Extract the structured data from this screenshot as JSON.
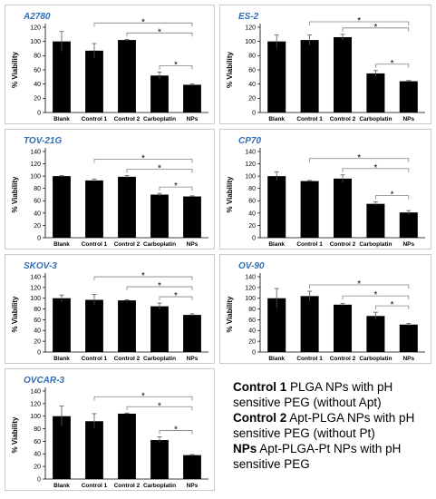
{
  "chart_data": [
    {
      "type": "bar",
      "title": "A2780",
      "ylabel": "% Viability",
      "categories": [
        "Blank",
        "Control 1",
        "Control 2",
        "Carboplatin",
        "NPs"
      ],
      "values": [
        100,
        87,
        102,
        52,
        39
      ],
      "errors": [
        14,
        10,
        1,
        5,
        1
      ],
      "ylim": [
        0,
        120
      ],
      "yticks": [
        0,
        20,
        40,
        60,
        80,
        100,
        120
      ],
      "significance": [
        {
          "from": "Control 1",
          "to": "NPs",
          "label": "*"
        },
        {
          "from": "Control 2",
          "to": "NPs",
          "label": "*"
        },
        {
          "from": "Carboplatin",
          "to": "NPs",
          "label": "*"
        }
      ]
    },
    {
      "type": "bar",
      "title": "ES-2",
      "ylabel": "% Viability",
      "categories": [
        "Blank",
        "Control 1",
        "Control 2",
        "Carboplatin",
        "NPs"
      ],
      "values": [
        100,
        102,
        106,
        55,
        44
      ],
      "errors": [
        9,
        7,
        4,
        4,
        1
      ],
      "ylim": [
        0,
        120
      ],
      "yticks": [
        0,
        20,
        40,
        60,
        80,
        100,
        120
      ],
      "significance": [
        {
          "from": "Control 1",
          "to": "NPs",
          "label": "*"
        },
        {
          "from": "Control 2",
          "to": "NPs",
          "label": "*"
        },
        {
          "from": "Carboplatin",
          "to": "NPs",
          "label": "*"
        }
      ]
    },
    {
      "type": "bar",
      "title": "TOV-21G",
      "ylabel": "% Viability",
      "categories": [
        "Blank",
        "Control 1",
        "Control 2",
        "Carboplatin",
        "NPs"
      ],
      "values": [
        100,
        93,
        99,
        70,
        67
      ],
      "errors": [
        1,
        2,
        2,
        2,
        1
      ],
      "ylim": [
        0,
        140
      ],
      "yticks": [
        0,
        20,
        40,
        60,
        80,
        100,
        120,
        140
      ],
      "significance": [
        {
          "from": "Control 1",
          "to": "NPs",
          "label": "*"
        },
        {
          "from": "Control 2",
          "to": "NPs",
          "label": "*"
        },
        {
          "from": "Carboplatin",
          "to": "NPs",
          "label": "*"
        }
      ]
    },
    {
      "type": "bar",
      "title": "CP70",
      "ylabel": "% Viability",
      "categories": [
        "Blank",
        "Control 1",
        "Control 2",
        "Carboplatin",
        "NPs"
      ],
      "values": [
        100,
        92,
        96,
        55,
        41
      ],
      "errors": [
        7,
        1,
        6,
        3,
        3
      ],
      "ylim": [
        0,
        140
      ],
      "yticks": [
        0,
        20,
        40,
        60,
        80,
        100,
        120,
        140
      ],
      "significance": [
        {
          "from": "Control 1",
          "to": "NPs",
          "label": "*"
        },
        {
          "from": "Control 2",
          "to": "NPs",
          "label": "*"
        },
        {
          "from": "Carboplatin",
          "to": "NPs",
          "label": "*"
        }
      ]
    },
    {
      "type": "bar",
      "title": "SKOV-3",
      "ylabel": "% Viability",
      "categories": [
        "Blank",
        "Control 1",
        "Control 2",
        "Carboplatin",
        "NPs"
      ],
      "values": [
        100,
        97,
        96,
        85,
        69
      ],
      "errors": [
        6,
        10,
        1,
        6,
        2
      ],
      "ylim": [
        0,
        140
      ],
      "yticks": [
        0,
        20,
        40,
        60,
        80,
        100,
        120,
        140
      ],
      "significance": [
        {
          "from": "Control 1",
          "to": "NPs",
          "label": "*"
        },
        {
          "from": "Control 2",
          "to": "NPs",
          "label": "*"
        },
        {
          "from": "Carboplatin",
          "to": "NPs",
          "label": "*"
        }
      ]
    },
    {
      "type": "bar",
      "title": "OV-90",
      "ylabel": "% Viability",
      "categories": [
        "Blank",
        "Control 1",
        "Control 2",
        "Carboplatin",
        "NPs"
      ],
      "values": [
        100,
        104,
        88,
        67,
        51
      ],
      "errors": [
        18,
        9,
        2,
        7,
        2
      ],
      "ylim": [
        0,
        140
      ],
      "yticks": [
        0,
        20,
        40,
        60,
        80,
        100,
        120,
        140
      ],
      "significance": [
        {
          "from": "Control 1",
          "to": "NPs",
          "label": "*"
        },
        {
          "from": "Control 2",
          "to": "NPs",
          "label": "*"
        },
        {
          "from": "Carboplatin",
          "to": "NPs",
          "label": "*"
        }
      ]
    },
    {
      "type": "bar",
      "title": "OVCAR-3",
      "ylabel": "% Viability",
      "categories": [
        "Blank",
        "Control 1",
        "Control 2",
        "Carboplatin",
        "NPs"
      ],
      "values": [
        100,
        92,
        104,
        62,
        38
      ],
      "errors": [
        16,
        12,
        1,
        5,
        1
      ],
      "ylim": [
        0,
        140
      ],
      "yticks": [
        0,
        20,
        40,
        60,
        80,
        100,
        120,
        140
      ],
      "significance": [
        {
          "from": "Control 1",
          "to": "NPs",
          "label": "*"
        },
        {
          "from": "Control 2",
          "to": "NPs",
          "label": "*"
        },
        {
          "from": "Carboplatin",
          "to": "NPs",
          "label": "*"
        }
      ]
    }
  ],
  "legend": [
    {
      "key": "Control 1",
      "text": "PLGA NPs with pH sensitive PEG (without Apt)"
    },
    {
      "key": "Control 2",
      "text": "Apt-PLGA NPs with pH sensitive PEG (without Pt)"
    },
    {
      "key": "NPs",
      "text": "Apt-PLGA-Pt NPs with pH sensitive PEG"
    }
  ],
  "colors": {
    "bar": "#000000",
    "title": "#2f6fb5",
    "bracket": "#808080",
    "panel_border": "#c9c9c9"
  }
}
